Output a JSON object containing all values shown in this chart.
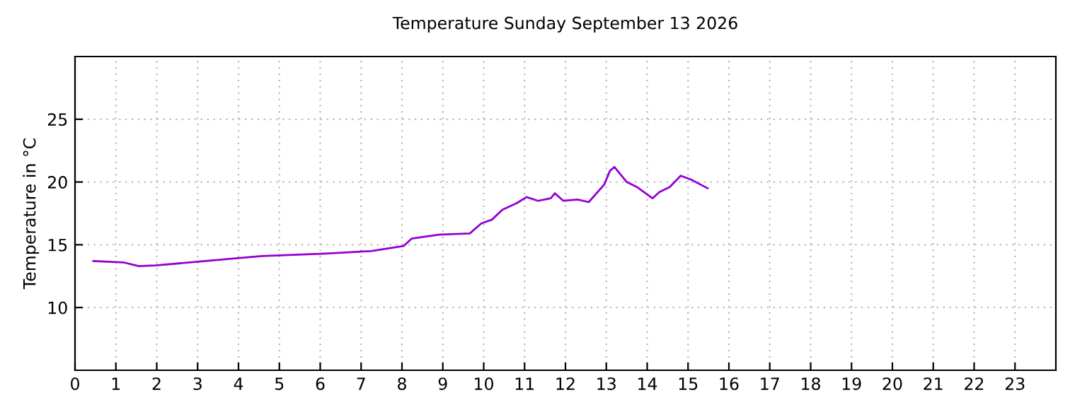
{
  "chart_data": {
    "type": "line",
    "title": "Temperature Sunday September 13 2026",
    "ylabel": "Temperature in °C",
    "xlim": [
      0,
      24
    ],
    "xticks": [
      0,
      1,
      2,
      3,
      4,
      5,
      6,
      7,
      8,
      9,
      10,
      11,
      12,
      13,
      14,
      15,
      16,
      17,
      18,
      19,
      20,
      21,
      22,
      23
    ],
    "ylim": [
      5,
      30
    ],
    "yticks": [
      10,
      15,
      20,
      25
    ],
    "grid": true,
    "marker": "none",
    "line_style": "solid",
    "series": [
      {
        "color": "#9400d3",
        "x": [
          0.45,
          1.18,
          1.56,
          1.97,
          3.19,
          4.57,
          6.13,
          7.24,
          8.04,
          8.24,
          8.9,
          9.66,
          9.94,
          10.2,
          10.46,
          10.8,
          11.05,
          11.33,
          11.64,
          11.74,
          11.95,
          12.3,
          12.57,
          12.95,
          13.09,
          13.2,
          13.5,
          13.75,
          14.13,
          14.3,
          14.55,
          14.82,
          15.07,
          15.48
        ],
        "values": [
          13.7,
          13.6,
          13.3,
          13.35,
          13.7,
          14.1,
          14.3,
          14.5,
          14.9,
          15.5,
          15.8,
          15.9,
          16.7,
          17.0,
          17.8,
          18.3,
          18.8,
          18.5,
          18.7,
          19.1,
          18.5,
          18.6,
          18.4,
          19.8,
          20.9,
          21.2,
          20.0,
          19.6,
          18.7,
          19.2,
          19.6,
          20.5,
          20.2,
          19.5
        ]
      }
    ]
  }
}
